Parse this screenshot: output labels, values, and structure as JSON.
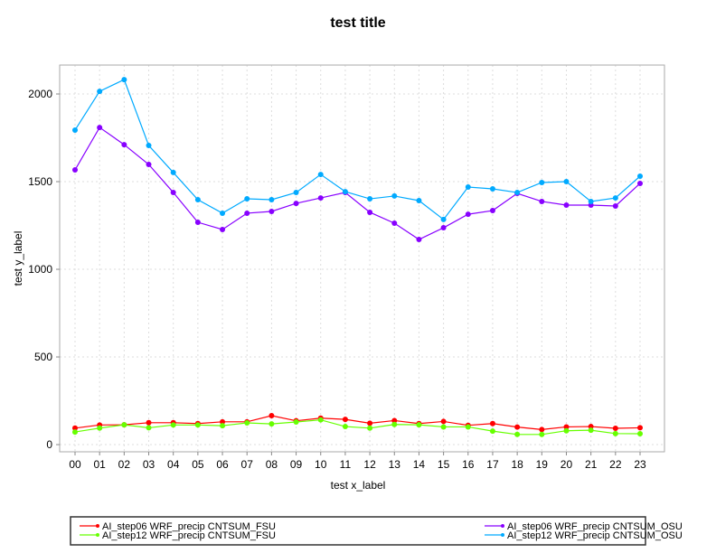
{
  "chart_data": {
    "type": "line",
    "title": "test title",
    "xlabel": "test x_label",
    "ylabel": "test y_label",
    "categories": [
      "00",
      "01",
      "02",
      "03",
      "04",
      "05",
      "06",
      "07",
      "08",
      "09",
      "10",
      "11",
      "12",
      "13",
      "14",
      "15",
      "16",
      "17",
      "18",
      "19",
      "20",
      "21",
      "22",
      "23"
    ],
    "ylim": [
      -41,
      2165
    ],
    "yticks": [
      0,
      500,
      1000,
      1500,
      2000
    ],
    "grid": true,
    "legend_placement": "bottom",
    "series": [
      {
        "name": "AI_step06 WRF_precip CNTSUM_FSU",
        "color": "#ff0000",
        "values": [
          94,
          112,
          113,
          125,
          125,
          120,
          130,
          130,
          165,
          136,
          151,
          144,
          122,
          137,
          120,
          132,
          110,
          120,
          100,
          86,
          101,
          103,
          93,
          96
        ]
      },
      {
        "name": "AI_step12 WRF_precip CNTSUM_FSU",
        "color": "#66ff00",
        "values": [
          72,
          94,
          113,
          96,
          112,
          112,
          108,
          124,
          118,
          129,
          141,
          103,
          94,
          115,
          113,
          101,
          101,
          77,
          58,
          58,
          79,
          82,
          63,
          62
        ]
      },
      {
        "name": "AI_step06 WRF_precip CNTSUM_OSU",
        "color": "#8800ff",
        "values": [
          1567,
          1809,
          1711,
          1598,
          1438,
          1268,
          1227,
          1320,
          1330,
          1376,
          1407,
          1438,
          1325,
          1263,
          1170,
          1237,
          1314,
          1335,
          1433,
          1387,
          1366,
          1366,
          1361,
          1490
        ]
      },
      {
        "name": "AI_step12 WRF_precip CNTSUM_OSU",
        "color": "#00aaff",
        "values": [
          1794,
          2015,
          2082,
          1706,
          1552,
          1397,
          1320,
          1402,
          1397,
          1438,
          1541,
          1443,
          1402,
          1418,
          1392,
          1284,
          1469,
          1459,
          1438,
          1495,
          1500,
          1387,
          1407,
          1531
        ]
      }
    ]
  }
}
